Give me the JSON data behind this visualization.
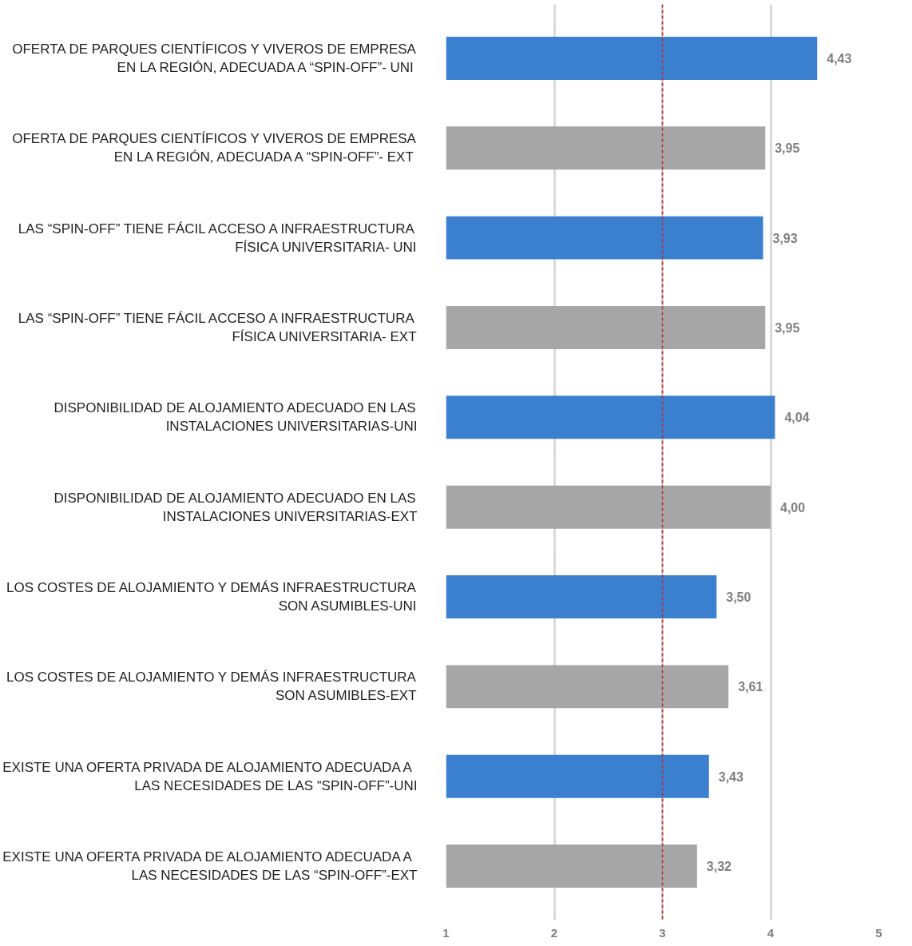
{
  "chart_data": {
    "type": "bar",
    "orientation": "horizontal",
    "categories": [
      "OFERTA DE PARQUES CIENTÍFICOS Y VIVEROS DE EMPRESA EN LA REGIÓN, ADECUADA A “SPIN-OFF”- UNI",
      "OFERTA DE PARQUES CIENTÍFICOS Y VIVEROS DE EMPRESA EN LA REGIÓN, ADECUADA A “SPIN-OFF”- EXT",
      "LAS “SPIN-OFF” TIENE FÁCIL ACCESO A INFRAESTRUCTURA FÍSICA UNIVERSITARIA- UNI",
      "LAS “SPIN-OFF” TIENE FÁCIL ACCESO A INFRAESTRUCTURA FÍSICA UNIVERSITARIA- EXT",
      "DISPONIBILIDAD DE ALOJAMIENTO ADECUADO EN LAS INSTALACIONES UNIVERSITARIAS-UNI",
      "DISPONIBILIDAD DE ALOJAMIENTO ADECUADO EN LAS INSTALACIONES UNIVERSITARIAS-EXT",
      "LOS COSTES DE ALOJAMIENTO Y DEMÁS INFRAESTRUCTURA SON ASUMIBLES-UNI",
      "LOS COSTES DE ALOJAMIENTO Y DEMÁS INFRAESTRUCTURA SON ASUMIBLES-EXT",
      "EXISTE UNA OFERTA PRIVADA DE ALOJAMIENTO ADECUADA A LAS NECESIDADES DE LAS “SPIN-OFF”-UNI",
      "EXISTE UNA OFERTA PRIVADA DE ALOJAMIENTO ADECUADA A LAS NECESIDADES DE LAS “SPIN-OFF”-EXT"
    ],
    "values": [
      4.43,
      3.95,
      3.93,
      3.95,
      4.04,
      4.0,
      3.5,
      3.61,
      3.43,
      3.32
    ],
    "value_labels": [
      "4,43",
      "3,95",
      "3,93",
      "3,95",
      "4,04",
      "4,00",
      "3,50",
      "3,61",
      "3,43",
      "3,32"
    ],
    "colors": [
      "#3b80cf",
      "#a6a6a6",
      "#3b80cf",
      "#a6a6a6",
      "#3b80cf",
      "#a6a6a6",
      "#3b80cf",
      "#a6a6a6",
      "#3b80cf",
      "#a6a6a6"
    ],
    "xlim": [
      1,
      5
    ],
    "xticks": [
      1,
      2,
      3,
      4,
      5
    ],
    "grid": "x",
    "ref_lines": [
      {
        "axis": "x",
        "value": 3,
        "label": null,
        "color": "#c0292b",
        "line_style": "dashed"
      }
    ]
  }
}
